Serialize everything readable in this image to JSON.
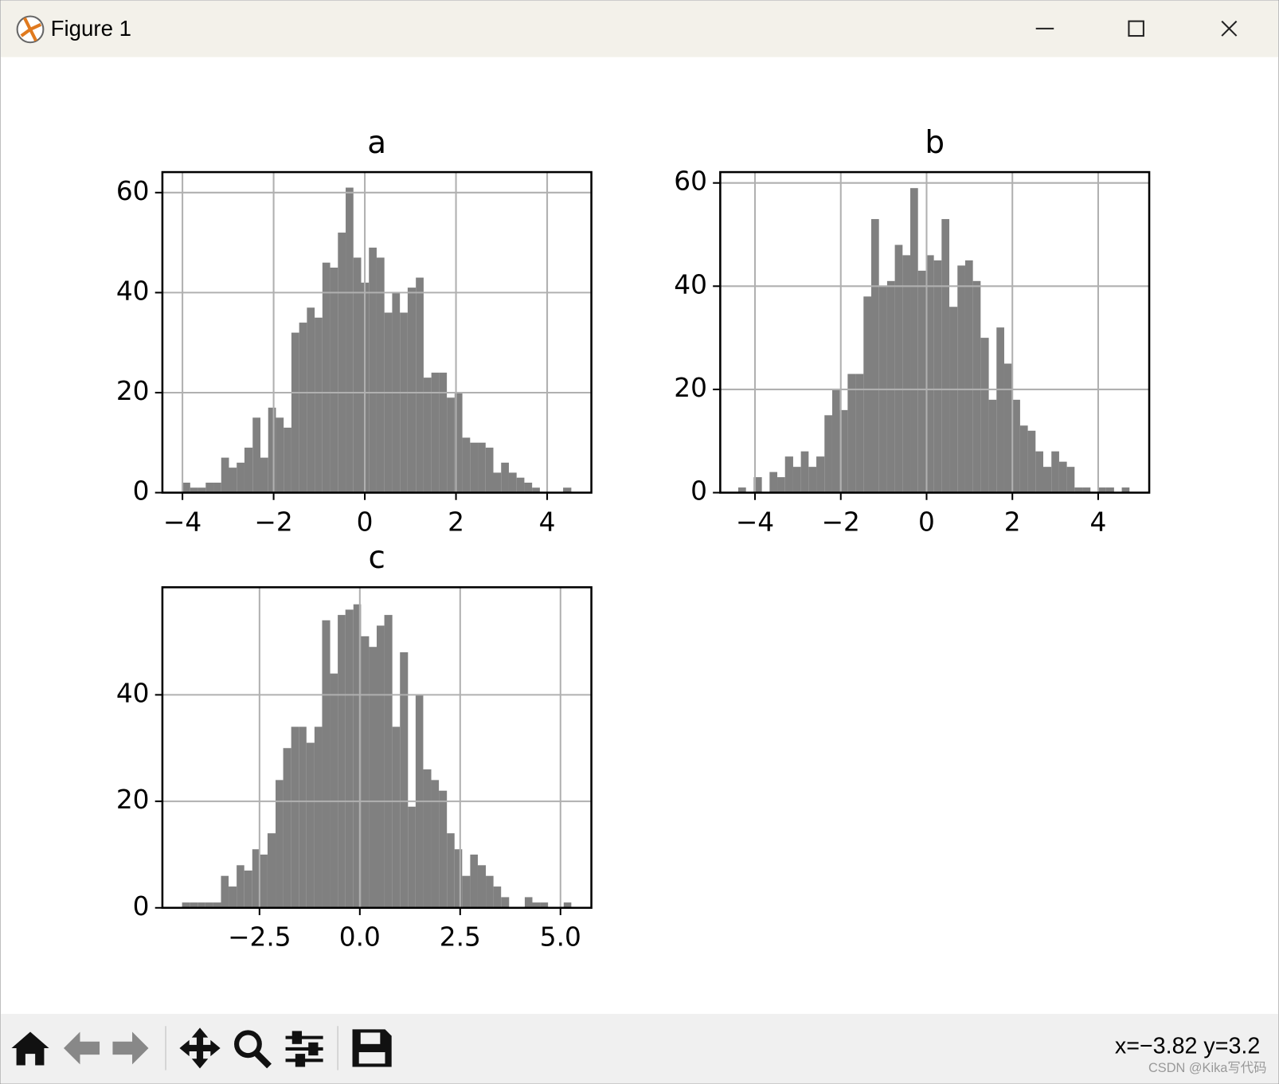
{
  "window": {
    "title": "Figure 1",
    "status": "x=−3.82 y=3.2",
    "watermark": "CSDN @Kika写代码"
  },
  "chart_data": [
    {
      "type": "histogram",
      "title": "a",
      "color": "#808080",
      "grid": true,
      "bins": [
        -4.0,
        -3.83,
        -3.66,
        -3.49,
        -3.32,
        -3.15,
        -2.98,
        -2.81,
        -2.64,
        -2.46,
        -2.29,
        -2.12,
        -1.95,
        -1.78,
        -1.61,
        -1.44,
        -1.27,
        -1.1,
        -0.93,
        -0.76,
        -0.59,
        -0.42,
        -0.25,
        -0.08,
        0.09,
        0.26,
        0.43,
        0.6,
        0.77,
        0.94,
        1.12,
        1.29,
        1.46,
        1.63,
        1.8,
        1.97,
        2.14,
        2.31,
        2.48,
        2.65,
        2.82,
        2.99,
        3.16,
        3.33,
        3.5,
        3.67,
        3.84,
        4.01,
        4.18,
        4.35,
        4.53
      ],
      "values": [
        2,
        1,
        1,
        2,
        2,
        7,
        5,
        6,
        9,
        15,
        7,
        17,
        15,
        13,
        32,
        34,
        37,
        35,
        46,
        45,
        52,
        61,
        47,
        42,
        49,
        47,
        36,
        40,
        36,
        41,
        43,
        23,
        24,
        24,
        19,
        20,
        11,
        10,
        10,
        9,
        4,
        6,
        4,
        3,
        2,
        1,
        0,
        0,
        0,
        1
      ],
      "xlim": [
        -4.44,
        4.97
      ],
      "ylim": [
        0,
        64.1
      ],
      "xticks": [
        {
          "value": -4,
          "label": "−4"
        },
        {
          "value": -2,
          "label": "−2"
        },
        0,
        2,
        4
      ],
      "yticks": [
        0,
        20,
        40,
        60
      ]
    },
    {
      "type": "histogram",
      "title": "b",
      "color": "#808080",
      "grid": true,
      "bins": [
        -4.39,
        -4.21,
        -4.03,
        -3.84,
        -3.66,
        -3.48,
        -3.3,
        -3.11,
        -2.93,
        -2.75,
        -2.57,
        -2.38,
        -2.2,
        -2.02,
        -1.84,
        -1.65,
        -1.47,
        -1.29,
        -1.11,
        -0.92,
        -0.74,
        -0.56,
        -0.38,
        -0.2,
        -0.01,
        0.17,
        0.35,
        0.53,
        0.72,
        0.9,
        1.08,
        1.26,
        1.45,
        1.63,
        1.81,
        1.99,
        2.18,
        2.36,
        2.54,
        2.72,
        2.91,
        3.09,
        3.27,
        3.45,
        3.64,
        3.82,
        4.0,
        4.18,
        4.37,
        4.55,
        4.73
      ],
      "values": [
        1,
        0,
        3,
        0,
        4,
        3,
        7,
        5,
        8,
        5,
        7,
        15,
        20,
        16,
        23,
        23,
        38,
        53,
        40,
        41,
        48,
        46,
        59,
        43,
        46,
        45,
        53,
        36,
        44,
        45,
        41,
        30,
        18,
        32,
        25,
        18,
        13,
        12,
        8,
        5,
        8,
        6,
        5,
        1,
        1,
        0,
        1,
        1,
        0,
        1
      ],
      "xlim": [
        -4.81,
        5.19
      ],
      "ylim": [
        0,
        62.1
      ],
      "xticks": [
        {
          "value": -4,
          "label": "−4"
        },
        {
          "value": -2,
          "label": "−2"
        },
        0,
        2,
        4
      ],
      "yticks": [
        0,
        20,
        40,
        60
      ]
    },
    {
      "type": "histogram",
      "title": "c",
      "color": "#808080",
      "grid": true,
      "bins": [
        -4.43,
        -4.24,
        -4.04,
        -3.85,
        -3.65,
        -3.46,
        -3.27,
        -3.07,
        -2.88,
        -2.68,
        -2.49,
        -2.3,
        -2.1,
        -1.91,
        -1.71,
        -1.52,
        -1.33,
        -1.13,
        -0.94,
        -0.74,
        -0.55,
        -0.36,
        -0.16,
        0.03,
        0.23,
        0.42,
        0.61,
        0.81,
        1.0,
        1.2,
        1.39,
        1.58,
        1.78,
        1.97,
        2.17,
        2.36,
        2.55,
        2.75,
        2.94,
        3.14,
        3.33,
        3.52,
        3.72,
        3.91,
        4.11,
        4.3,
        4.49,
        4.69,
        4.88,
        5.08,
        5.27
      ],
      "values": [
        1,
        1,
        1,
        1,
        1,
        6,
        4,
        8,
        7,
        11,
        10,
        14,
        24,
        30,
        34,
        34,
        31,
        34,
        54,
        44,
        55,
        56,
        57,
        51,
        49,
        53,
        55,
        34,
        48,
        19,
        40,
        26,
        24,
        22,
        14,
        11,
        6,
        10,
        8,
        6,
        4,
        2,
        0,
        0,
        2,
        1,
        1,
        0,
        0,
        1
      ],
      "xlim": [
        -4.92,
        5.77
      ],
      "ylim": [
        0,
        60.2
      ],
      "xticks": [
        {
          "value": -2.5,
          "label": "−2.5"
        },
        {
          "value": 0,
          "label": "0.0"
        },
        2.5,
        {
          "value": 5,
          "label": "5.0"
        }
      ],
      "yticks": [
        0,
        20,
        40
      ]
    }
  ]
}
